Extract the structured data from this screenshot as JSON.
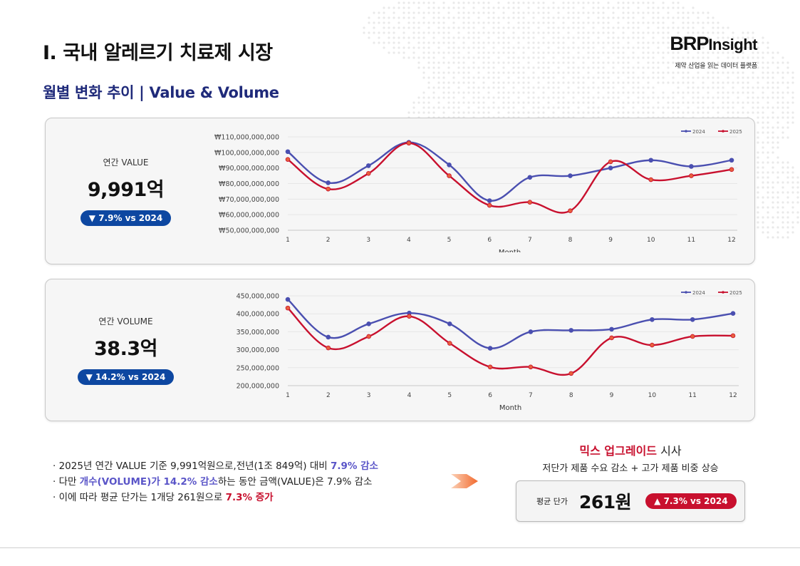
{
  "header": {
    "title": "I. 국내 알레르기 치료제 시장",
    "subtitle": "월별 변화 추이 | Value & Volume"
  },
  "logo": {
    "brand_bold": "BRP",
    "brand_small": "Insight",
    "tagline": "제약 산업을 읽는 데이터 플랫폼"
  },
  "value_card": {
    "label": "연간 VALUE",
    "value": "9,991억",
    "change": "▼ 7.9% vs 2024"
  },
  "volume_card": {
    "label": "연간 VOLUME",
    "value": "38.3억",
    "change": "▼ 14.2% vs 2024"
  },
  "bullets": {
    "b1_text": "· 2025년 연간 VALUE 기준 9,991억원으로,전년(1조 849억) 대비 ",
    "b1_hl": "7.9% 감소",
    "b2_pre": "· 다만 ",
    "b2_hl": "개수(VOLUME)가 14.2% 감소",
    "b2_post": "하는 동안 금액(VALUE)은 7.9% 감소",
    "b3_text": "· 이에 따라 평균 단가는 1개당 261원으로 ",
    "b3_hl": "7.3% 증가"
  },
  "mix": {
    "title_hl": "믹스 업그레이드",
    "title_rest": " 시사",
    "subtitle": "저단가 제품 수요 감소 + 고가 제품 비중 상승"
  },
  "price": {
    "label": "평균 단가",
    "value": "261원",
    "change": "▲ 7.3% vs 2024"
  },
  "colors": {
    "series_2024": "#4a4fb0",
    "series_2025": "#c8102e",
    "marker_2025": "#e8603c",
    "accent_navy": "#1f2a7a",
    "badge_down": "#0d47a1",
    "badge_up": "#c8102e"
  },
  "icons": {
    "arrow": "orange-chevron-arrow"
  },
  "chart_data": [
    {
      "type": "line",
      "xlabel": "Month",
      "ylabel": "",
      "x": [
        1,
        2,
        3,
        4,
        5,
        6,
        7,
        8,
        9,
        10,
        11,
        12
      ],
      "ylim": [
        50000000000,
        110000000000
      ],
      "yticks": [
        50000000000,
        60000000000,
        70000000000,
        80000000000,
        90000000000,
        100000000000,
        110000000000
      ],
      "ytick_labels": [
        "₩50,000,000,000",
        "₩60,000,000,000",
        "₩70,000,000,000",
        "₩80,000,000,000",
        "₩90,000,000,000",
        "₩100,000,000,000",
        "₩110,000,000,000"
      ],
      "grid": true,
      "legend": "top-right",
      "series": [
        {
          "name": "2024",
          "color": "#4a4fb0",
          "values": [
            100500000000,
            80500000000,
            91500000000,
            106500000000,
            92000000000,
            69000000000,
            84000000000,
            85000000000,
            90000000000,
            95000000000,
            91000000000,
            95000000000
          ]
        },
        {
          "name": "2025",
          "color": "#c8102e",
          "values": [
            95500000000,
            76500000000,
            86500000000,
            106000000000,
            85000000000,
            66000000000,
            68000000000,
            62500000000,
            94000000000,
            82500000000,
            85000000000,
            89000000000
          ]
        }
      ]
    },
    {
      "type": "line",
      "xlabel": "Month",
      "ylabel": "",
      "x": [
        1,
        2,
        3,
        4,
        5,
        6,
        7,
        8,
        9,
        10,
        11,
        12
      ],
      "ylim": [
        200000000,
        450000000
      ],
      "yticks": [
        200000000,
        250000000,
        300000000,
        350000000,
        400000000,
        450000000
      ],
      "ytick_labels": [
        "200,000,000",
        "250,000,000",
        "300,000,000",
        "350,000,000",
        "400,000,000",
        "450,000,000"
      ],
      "grid": true,
      "legend": "top-right",
      "series": [
        {
          "name": "2024",
          "color": "#4a4fb0",
          "values": [
            440000000,
            335000000,
            372000000,
            402000000,
            372000000,
            304000000,
            350000000,
            354000000,
            357000000,
            384000000,
            384000000,
            401000000
          ]
        },
        {
          "name": "2025",
          "color": "#c8102e",
          "values": [
            416000000,
            305000000,
            337000000,
            393000000,
            318000000,
            252000000,
            252000000,
            234000000,
            333000000,
            313000000,
            337000000,
            339000000
          ]
        }
      ]
    }
  ]
}
